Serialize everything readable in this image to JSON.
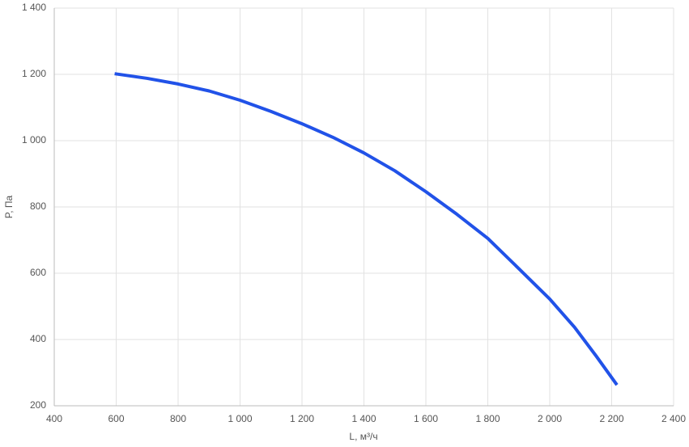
{
  "chart_data": {
    "type": "line",
    "x_label": "L, м³/ч",
    "y_label": "P, Па",
    "x": [
      595,
      700,
      800,
      900,
      1000,
      1100,
      1200,
      1300,
      1400,
      1500,
      1600,
      1700,
      1800,
      1900,
      2000,
      2080,
      2150,
      2217
    ],
    "values": [
      1202,
      1188,
      1171,
      1150,
      1122,
      1088,
      1051,
      1010,
      963,
      909,
      846,
      778,
      705,
      614,
      522,
      437,
      350,
      263
    ],
    "color": "#2152e8",
    "xlim": [
      400,
      2400
    ],
    "ylim": [
      200,
      1400
    ],
    "xticks": [
      400,
      600,
      800,
      {
        "value": 1000,
        "label": "1 000"
      },
      {
        "value": 1200,
        "label": "1 200"
      },
      {
        "value": 1400,
        "label": "1 400"
      },
      {
        "value": 1600,
        "label": "1 600"
      },
      {
        "value": 1800,
        "label": "1 800"
      },
      {
        "value": 2000,
        "label": "2 000"
      },
      {
        "value": 2200,
        "label": "2 200"
      },
      {
        "value": 2400,
        "label": "2 400"
      }
    ],
    "yticks": [
      200,
      400,
      600,
      800,
      {
        "value": 1000,
        "label": "1 000"
      },
      {
        "value": 1200,
        "label": "1 200"
      },
      {
        "value": 1400,
        "label": "1 400"
      }
    ],
    "grid": true
  }
}
